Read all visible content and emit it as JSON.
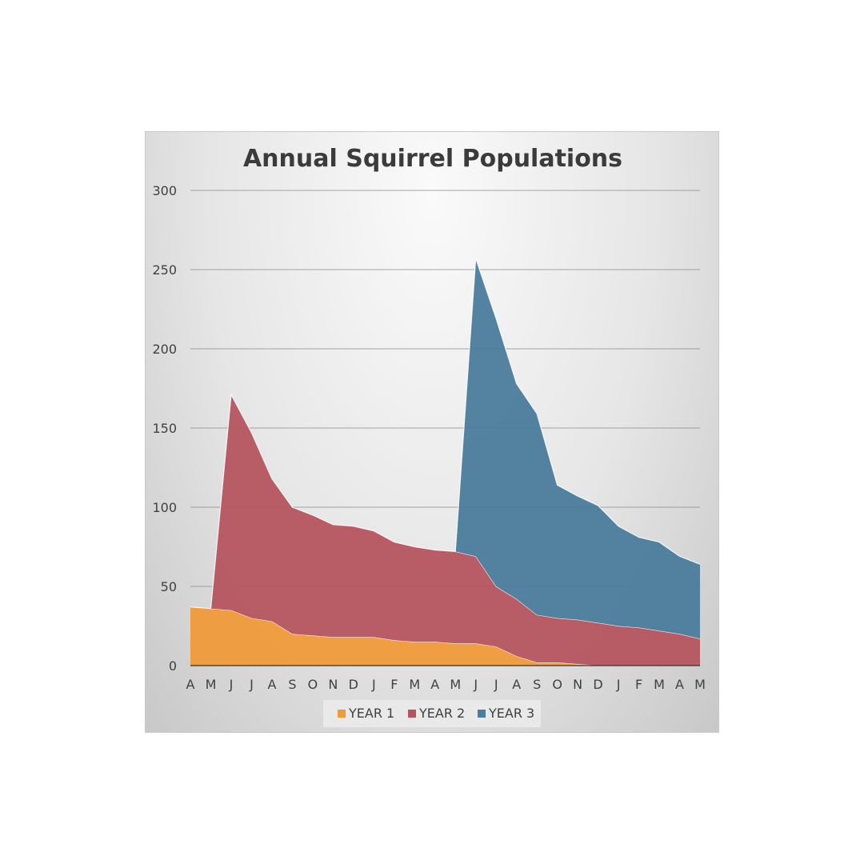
{
  "chart_data": {
    "type": "area",
    "stacked": true,
    "title": "Annual Squirrel Populations",
    "categories": [
      "A",
      "M",
      "J",
      "J",
      "A",
      "S",
      "O",
      "N",
      "D",
      "J",
      "F",
      "M",
      "A",
      "M",
      "J",
      "J",
      "A",
      "S",
      "O",
      "N",
      "D",
      "J",
      "F",
      "M",
      "A",
      "M"
    ],
    "ylim": [
      0,
      300
    ],
    "yticks": [
      0,
      50,
      100,
      150,
      200,
      250,
      300
    ],
    "grid": true,
    "legend": "bottom",
    "series": [
      {
        "name": "YEAR 1",
        "color": "#F09A3A",
        "values": [
          37,
          36,
          35,
          30,
          28,
          20,
          19,
          18,
          18,
          18,
          16,
          15,
          15,
          14,
          14,
          12,
          6,
          2,
          2,
          1,
          0,
          0,
          0,
          0,
          0,
          0
        ]
      },
      {
        "name": "YEAR 2",
        "color": "#B5545F",
        "values": [
          null,
          0,
          136,
          117,
          90,
          80,
          76,
          71,
          70,
          67,
          62,
          60,
          58,
          58,
          55,
          38,
          36,
          30,
          28,
          28,
          27,
          25,
          24,
          22,
          20,
          17
        ]
      },
      {
        "name": "YEAR 3",
        "color": "#4A7C9C",
        "values": [
          null,
          null,
          null,
          null,
          null,
          null,
          null,
          null,
          null,
          null,
          null,
          null,
          null,
          0,
          188,
          169,
          136,
          127,
          84,
          78,
          74,
          63,
          57,
          56,
          49,
          47
        ]
      }
    ]
  }
}
